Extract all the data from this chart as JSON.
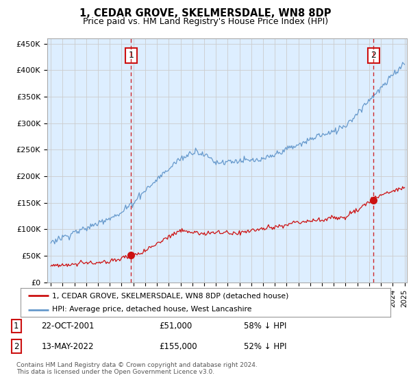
{
  "title": "1, CEDAR GROVE, SKELMERSDALE, WN8 8DP",
  "subtitle": "Price paid vs. HM Land Registry's House Price Index (HPI)",
  "title_fontsize": 10.5,
  "subtitle_fontsize": 9,
  "ylabel_ticks": [
    "£0",
    "£50K",
    "£100K",
    "£150K",
    "£200K",
    "£250K",
    "£300K",
    "£350K",
    "£400K",
    "£450K"
  ],
  "ytick_values": [
    0,
    50000,
    100000,
    150000,
    200000,
    250000,
    300000,
    350000,
    400000,
    450000
  ],
  "ylim": [
    0,
    460000
  ],
  "legend_line1": "1, CEDAR GROVE, SKELMERSDALE, WN8 8DP (detached house)",
  "legend_line2": "HPI: Average price, detached house, West Lancashire",
  "sale1_date": "22-OCT-2001",
  "sale1_price": "£51,000",
  "sale1_pct": "58% ↓ HPI",
  "sale2_date": "13-MAY-2022",
  "sale2_price": "£155,000",
  "sale2_pct": "52% ↓ HPI",
  "footnote": "Contains HM Land Registry data © Crown copyright and database right 2024.\nThis data is licensed under the Open Government Licence v3.0.",
  "sale1_x": 2001.81,
  "sale1_y": 51000,
  "sale2_x": 2022.37,
  "sale2_y": 155000,
  "vline1_x": 2001.81,
  "vline2_x": 2022.37,
  "hpi_color": "#6699cc",
  "hpi_fill_color": "#ddeeff",
  "sale_color": "#cc1111",
  "bg_color": "#ffffff",
  "grid_color": "#cccccc",
  "xlim_start": 1994.7,
  "xlim_end": 2025.2
}
